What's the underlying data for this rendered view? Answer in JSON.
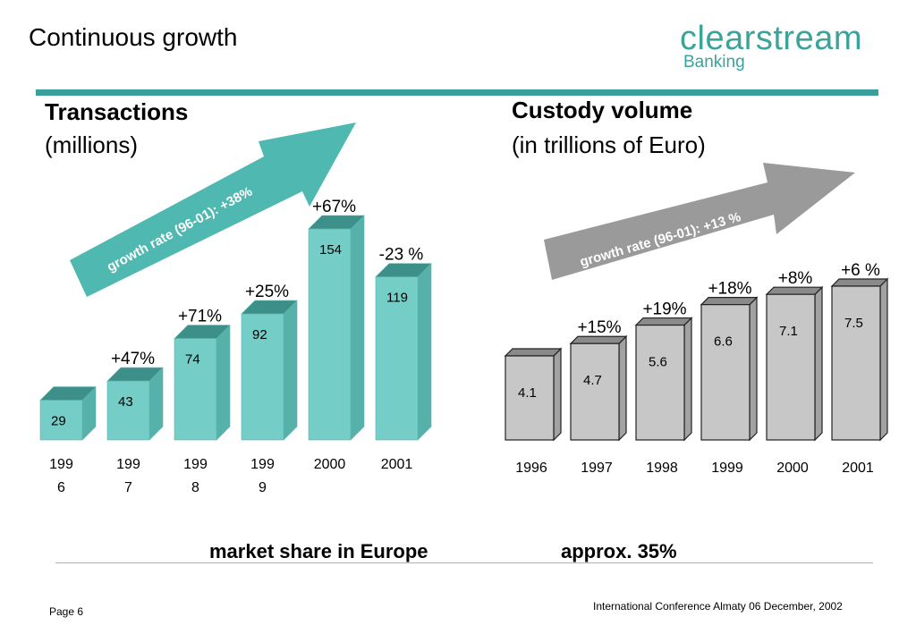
{
  "header": {
    "title": "Continuous growth",
    "logo_word": "clearstream",
    "logo_sub": "Banking"
  },
  "colors": {
    "teal_front": "#75cdc7",
    "teal_side": "#56b1ab",
    "teal_top": "#3d8f89",
    "teal_arrow": "#4fb8b1",
    "grey_front": "#c7c7c7",
    "grey_side": "#a2a2a2",
    "grey_top": "#8a8a8a",
    "grey_arrow": "#9a9a9a",
    "rule": "#3a9e9b"
  },
  "chart_data": [
    {
      "type": "bar",
      "title": "Transactions",
      "subtitle": "(millions)",
      "categories": [
        "199\n6",
        "199\n7",
        "199\n8",
        "199\n9",
        "2000",
        "2001"
      ],
      "values": [
        29,
        43,
        74,
        92,
        154,
        119
      ],
      "growth_labels": [
        "",
        "+47%",
        "+71%",
        "+25%",
        "+67%",
        "-23 %"
      ],
      "arrow_label": "growth rate (96-01): +38%",
      "ylim": [
        0,
        160
      ]
    },
    {
      "type": "bar",
      "title": "Custody volume",
      "subtitle": "(in trillions of Euro)",
      "categories": [
        "1996",
        "1997",
        "1998",
        "1999",
        "2000",
        "2001"
      ],
      "values": [
        4.1,
        4.7,
        5.6,
        6.6,
        7.1,
        7.5
      ],
      "growth_labels": [
        "",
        "+15%",
        "+19%",
        "+18%",
        "+8%",
        "+6 %"
      ],
      "arrow_label": "growth rate (96-01): +13 %",
      "ylim": [
        0,
        8
      ]
    }
  ],
  "market": {
    "label": "market share in Europe",
    "value": "approx. 35%"
  },
  "footer": {
    "page": "Page 6",
    "conference": "International Conference Almaty 06 December, 2002"
  }
}
